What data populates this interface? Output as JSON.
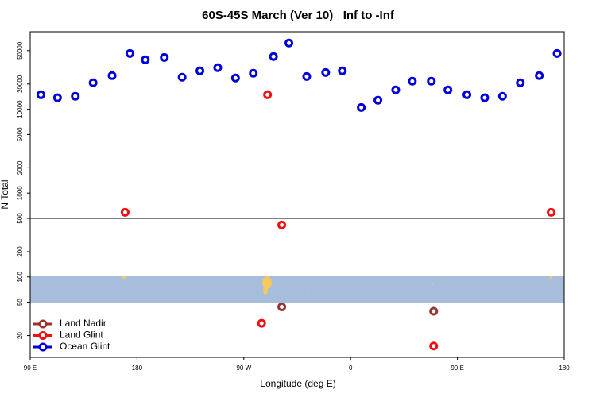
{
  "chart_data": {
    "type": "scatter",
    "title": "60S-45S March (Ver 10)   Inf to -Inf",
    "x_label": "Longitude (deg E)",
    "y_label": "N Total",
    "xlim": [
      90,
      540
    ],
    "xticks": [
      {
        "value": 90,
        "label": "90 E"
      },
      {
        "value": 180,
        "label": "180"
      },
      {
        "value": 270,
        "label": "90 W"
      },
      {
        "value": 360,
        "label": "0"
      },
      {
        "value": 450,
        "label": "90 E"
      },
      {
        "value": 540,
        "label": "180"
      }
    ],
    "ylim": [
      11,
      84000
    ],
    "yticks": [
      20,
      50,
      100,
      200,
      500,
      1000,
      2000,
      5000,
      10000,
      20000,
      50000
    ],
    "log_y": true,
    "legend": "lower left",
    "series": [
      {
        "name": "Land Nadir",
        "color": "#993333",
        "x": [
          302,
          430
        ],
        "values": [
          44,
          39
        ]
      },
      {
        "name": "Land Glint",
        "color": "#ee1111",
        "x": [
          170,
          290,
          302,
          285,
          430,
          529
        ],
        "values": [
          590,
          14900,
          416,
          28,
          15,
          590
        ]
      },
      {
        "name": "Ocean Glint",
        "color": "#0000dd",
        "x": [
          99,
          113,
          128,
          143,
          159,
          174,
          187,
          203,
          218,
          233,
          248,
          263,
          278,
          295,
          308,
          323,
          339,
          353,
          369,
          383,
          398,
          412,
          428,
          442,
          458,
          473,
          488,
          503,
          519,
          534
        ],
        "values": [
          14900,
          13700,
          14300,
          20700,
          25200,
          46300,
          38900,
          41500,
          24100,
          28700,
          31300,
          23600,
          26900,
          42500,
          61500,
          24600,
          27400,
          28700,
          10500,
          12800,
          17000,
          21600,
          21600,
          17000,
          14900,
          13700,
          14300,
          20700,
          25200,
          46300
        ]
      }
    ]
  }
}
